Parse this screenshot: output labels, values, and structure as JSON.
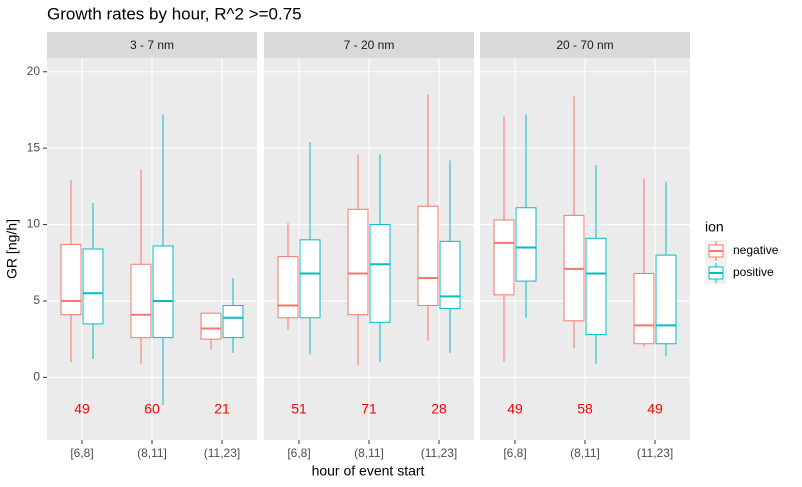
{
  "chart_data": {
    "type": "box",
    "title": "Growth rates by hour, R^2 >=0.75",
    "xlabel": "hour of event start",
    "ylabel": "GR [ng/h]",
    "legend_title": "ion",
    "categories": [
      "[6,8]",
      "(8,11]",
      "(11,23]"
    ],
    "series": [
      {
        "name": "negative",
        "color": "#F8766D"
      },
      {
        "name": "positive",
        "color": "#00BFC4"
      }
    ],
    "count_color": "#ff0000",
    "ylim": [
      -4.1,
      20.9
    ],
    "yticks": [
      0,
      5,
      10,
      15,
      20
    ],
    "grid": true,
    "facets": [
      {
        "title": "3 - 7 nm",
        "counts": [
          49,
          60,
          21
        ],
        "series": [
          {
            "stats": [
              {
                "min": 1.0,
                "q1": 4.1,
                "median": 5.0,
                "q3": 8.7,
                "max": 12.9
              },
              {
                "min": 0.9,
                "q1": 2.6,
                "median": 4.1,
                "q3": 7.4,
                "max": 13.6
              },
              {
                "min": 1.8,
                "q1": 2.5,
                "median": 3.2,
                "q3": 4.2,
                "max": 4.2
              }
            ]
          },
          {
            "stats": [
              {
                "min": 1.2,
                "q1": 3.5,
                "median": 5.5,
                "q3": 8.4,
                "max": 11.4
              },
              {
                "min": -1.8,
                "q1": 2.6,
                "median": 5.0,
                "q3": 8.6,
                "max": 17.2
              },
              {
                "min": 1.6,
                "q1": 2.6,
                "median": 3.9,
                "q3": 4.7,
                "max": 6.5
              }
            ]
          }
        ]
      },
      {
        "title": "7 - 20 nm",
        "counts": [
          51,
          71,
          28
        ],
        "series": [
          {
            "stats": [
              {
                "min": 3.1,
                "q1": 3.9,
                "median": 4.7,
                "q3": 7.9,
                "max": 10.1
              },
              {
                "min": 0.8,
                "q1": 4.1,
                "median": 6.8,
                "q3": 11.0,
                "max": 14.6
              },
              {
                "min": 2.4,
                "q1": 4.7,
                "median": 6.5,
                "q3": 11.2,
                "max": 18.5
              }
            ]
          },
          {
            "stats": [
              {
                "min": 1.5,
                "q1": 3.9,
                "median": 6.8,
                "q3": 9.0,
                "max": 15.4
              },
              {
                "min": 1.0,
                "q1": 3.6,
                "median": 7.4,
                "q3": 10.0,
                "max": 14.6
              },
              {
                "min": 1.6,
                "q1": 4.5,
                "median": 5.3,
                "q3": 8.9,
                "max": 14.2
              }
            ]
          }
        ]
      },
      {
        "title": "20 - 70 nm",
        "counts": [
          49,
          58,
          49
        ],
        "series": [
          {
            "stats": [
              {
                "min": 1.0,
                "q1": 5.4,
                "median": 8.8,
                "q3": 10.3,
                "max": 17.1
              },
              {
                "min": 1.9,
                "q1": 3.7,
                "median": 7.1,
                "q3": 10.6,
                "max": 18.4
              },
              {
                "min": 2.0,
                "q1": 2.2,
                "median": 3.4,
                "q3": 6.8,
                "max": 13.0
              }
            ]
          },
          {
            "stats": [
              {
                "min": 3.9,
                "q1": 6.3,
                "median": 8.5,
                "q3": 11.1,
                "max": 17.2
              },
              {
                "min": 0.9,
                "q1": 2.8,
                "median": 6.8,
                "q3": 9.1,
                "max": 13.9
              },
              {
                "min": 1.4,
                "q1": 2.2,
                "median": 3.4,
                "q3": 8.0,
                "max": 12.8
              }
            ]
          }
        ]
      }
    ]
  }
}
